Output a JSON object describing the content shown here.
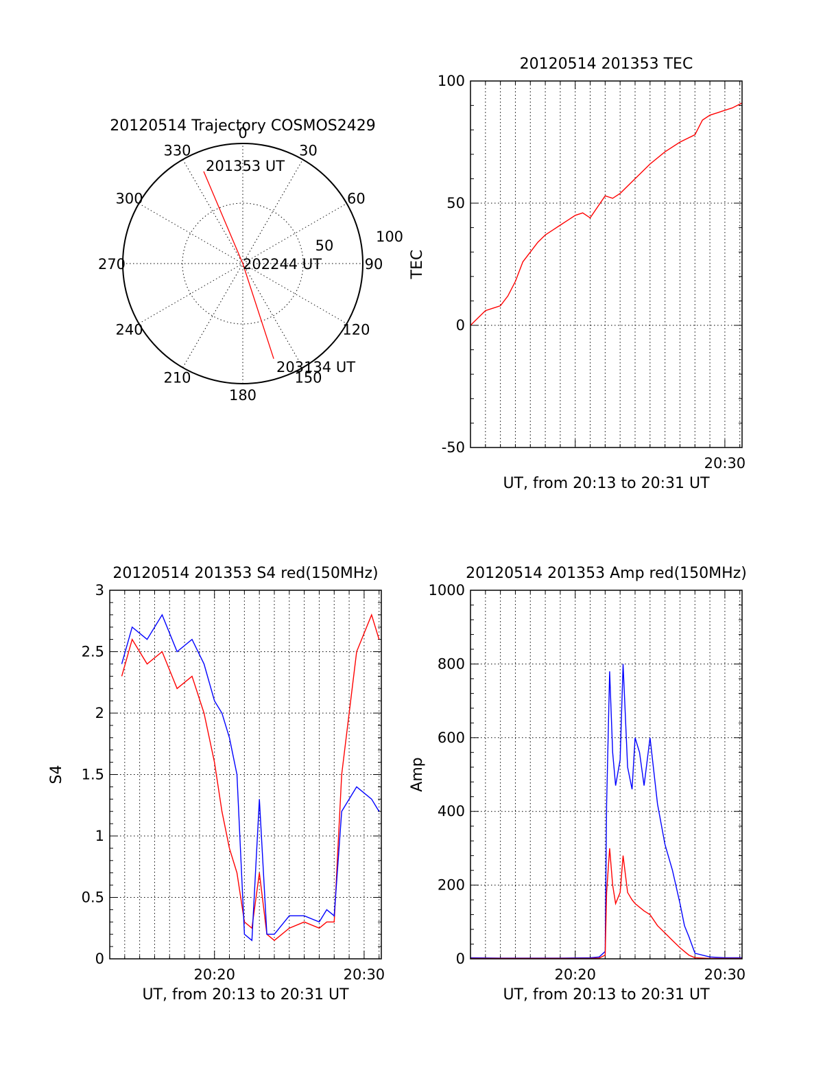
{
  "chart_data": [
    {
      "type": "polar",
      "title": "20120514 Trajectory COSMOS2429",
      "azimuth_labels": [
        "0",
        "30",
        "60",
        "90",
        "120",
        "150",
        "180",
        "210",
        "240",
        "270",
        "300",
        "330"
      ],
      "radial_labels": [
        "50",
        "100"
      ],
      "trajectory": [
        {
          "az": 337,
          "elev": 15
        },
        {
          "az": 0,
          "elev": 90
        },
        {
          "az": 162,
          "elev": 15
        }
      ],
      "annotations": [
        "201353 UT",
        "202244 UT",
        "203134 UT"
      ],
      "colors": {
        "trajectory": "#ff0000"
      }
    },
    {
      "type": "line",
      "title": "20120514 201353 TEC",
      "ylabel": "TEC",
      "xlabel": "UT, from 20:13 to 20:31 UT",
      "ylim": [
        -50,
        100
      ],
      "yticks": [
        "-50",
        "0",
        "50",
        "100"
      ],
      "xticks": [
        "20:30"
      ],
      "x_range_minutes": [
        13.0,
        31.15
      ],
      "grid": true,
      "series": [
        {
          "color": "#ff0000",
          "x": [
            13.0,
            13.5,
            14.0,
            14.5,
            15.0,
            15.5,
            16.0,
            16.5,
            17.0,
            17.5,
            18.0,
            18.5,
            19.0,
            19.5,
            20.0,
            20.5,
            21.0,
            22.0,
            22.5,
            23.0,
            24.0,
            25.0,
            26.0,
            27.0,
            28.0,
            28.5,
            29.0,
            29.5,
            30.0,
            30.5,
            31.15
          ],
          "y": [
            0,
            3,
            6,
            7,
            8,
            12,
            18,
            26,
            30,
            34,
            37,
            39,
            41,
            43,
            45,
            46,
            44,
            53,
            52,
            54,
            60,
            66,
            71,
            75,
            78,
            84,
            86,
            87,
            88,
            89,
            91
          ]
        }
      ]
    },
    {
      "type": "line",
      "title": "20120514 201353 S4 red(150MHz)",
      "ylabel": "S4",
      "xlabel": "UT, from 20:13 to 20:31 UT",
      "ylim": [
        0,
        3
      ],
      "yticks": [
        "0",
        "0.5",
        "1",
        "1.5",
        "2",
        "2.5",
        "3"
      ],
      "xticks": [
        "20:20",
        "20:30"
      ],
      "x_range_minutes": [
        13.0,
        31.15
      ],
      "grid": true,
      "series": [
        {
          "color": "#ff0000",
          "x": [
            13.8,
            14.5,
            15.5,
            16.5,
            17.5,
            18.5,
            19.3,
            20.0,
            20.5,
            21.0,
            21.5,
            22.0,
            22.5,
            23.0,
            23.5,
            24.0,
            25.0,
            26.0,
            27.0,
            27.5,
            28.0,
            28.5,
            29.5,
            30.5,
            31.0
          ],
          "y": [
            2.3,
            2.6,
            2.4,
            2.5,
            2.2,
            2.3,
            2.0,
            1.6,
            1.2,
            0.9,
            0.7,
            0.3,
            0.25,
            0.7,
            0.2,
            0.15,
            0.25,
            0.3,
            0.25,
            0.3,
            0.3,
            1.5,
            2.5,
            2.8,
            2.6
          ]
        },
        {
          "color": "#0000ff",
          "x": [
            13.8,
            14.5,
            15.5,
            16.5,
            17.5,
            18.5,
            19.3,
            20.0,
            20.5,
            21.0,
            21.5,
            22.0,
            22.5,
            23.0,
            23.5,
            24.0,
            25.0,
            26.0,
            27.0,
            27.5,
            28.0,
            28.5,
            29.5,
            30.5,
            31.0
          ],
          "y": [
            2.4,
            2.7,
            2.6,
            2.8,
            2.5,
            2.6,
            2.4,
            2.1,
            2.0,
            1.8,
            1.5,
            0.2,
            0.15,
            1.3,
            0.2,
            0.2,
            0.35,
            0.35,
            0.3,
            0.4,
            0.35,
            1.2,
            1.4,
            1.3,
            1.2
          ]
        }
      ]
    },
    {
      "type": "line",
      "title": "20120514 201353 Amp red(150MHz)",
      "ylabel": "Amp",
      "xlabel": "UT, from 20:13 to 20:31 UT",
      "ylim": [
        0,
        1000
      ],
      "yticks": [
        "0",
        "200",
        "400",
        "600",
        "800",
        "1000"
      ],
      "xticks": [
        "20:20",
        "20:30"
      ],
      "x_range_minutes": [
        13.0,
        31.15
      ],
      "grid": true,
      "series": [
        {
          "color": "#0000ff",
          "x": [
            13.0,
            15.0,
            17.0,
            19.0,
            21.0,
            21.6,
            22.0,
            22.1,
            22.3,
            22.5,
            22.7,
            23.0,
            23.2,
            23.5,
            23.8,
            24.0,
            24.3,
            24.6,
            25.0,
            25.5,
            26.0,
            26.5,
            27.0,
            27.3,
            27.6,
            28.0,
            29.0,
            30.0,
            31.15
          ],
          "y": [
            3,
            2,
            2,
            2,
            3,
            5,
            20,
            420,
            780,
            560,
            470,
            540,
            800,
            520,
            460,
            600,
            560,
            470,
            600,
            420,
            310,
            240,
            150,
            90,
            60,
            15,
            5,
            3,
            3
          ]
        },
        {
          "color": "#ff0000",
          "x": [
            13.0,
            15.0,
            17.0,
            19.0,
            21.0,
            21.6,
            22.0,
            22.1,
            22.3,
            22.5,
            22.7,
            23.0,
            23.2,
            23.5,
            23.8,
            24.0,
            24.3,
            24.6,
            25.0,
            25.5,
            26.0,
            26.5,
            27.0,
            27.3,
            27.6,
            28.0,
            29.0,
            30.0,
            31.15
          ],
          "y": [
            1,
            1,
            1,
            1,
            1,
            2,
            10,
            180,
            300,
            200,
            150,
            180,
            280,
            180,
            160,
            150,
            140,
            130,
            120,
            90,
            70,
            50,
            30,
            20,
            10,
            3,
            1,
            1,
            1
          ]
        }
      ]
    }
  ]
}
